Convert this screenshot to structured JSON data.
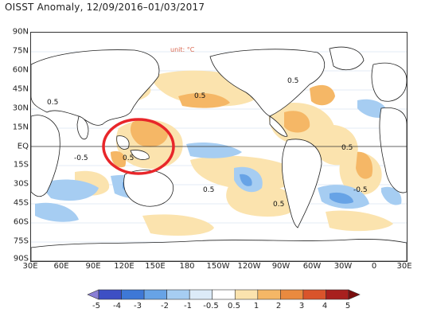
{
  "title": "OISST Anomaly, 12/09/2016–01/03/2017",
  "unit_label": "unit: °C",
  "lat_labels": [
    "90N",
    "75N",
    "60N",
    "45N",
    "30N",
    "15N",
    "EQ",
    "15S",
    "30S",
    "45S",
    "60S",
    "75S",
    "90S"
  ],
  "lon_labels": [
    "30E",
    "60E",
    "90E",
    "120E",
    "150E",
    "180",
    "150W",
    "120W",
    "90W",
    "60W",
    "30W",
    "0",
    "30E"
  ],
  "contour_labels": [
    "0.5",
    "0.5",
    "-0.5",
    "0.5",
    "0.5",
    "-0.5",
    "0.5",
    "0.5",
    "0.5"
  ],
  "colorbar": {
    "labels": [
      "-5",
      "-4",
      "-3",
      "-2",
      "-1",
      "-0.5",
      "0.5",
      "1",
      "2",
      "3",
      "4",
      "5"
    ],
    "colors": [
      "#8a7fd6",
      "#3d4fc4",
      "#3e78d6",
      "#67a3e6",
      "#a6cdf2",
      "#dcebf8",
      "#ffffff",
      "#fbe3ae",
      "#f5b766",
      "#e98a3f",
      "#d9542b",
      "#a8201e",
      "#7a0e0e"
    ]
  },
  "highlight": {
    "shape": "ellipse",
    "color": "#e8262a"
  }
}
